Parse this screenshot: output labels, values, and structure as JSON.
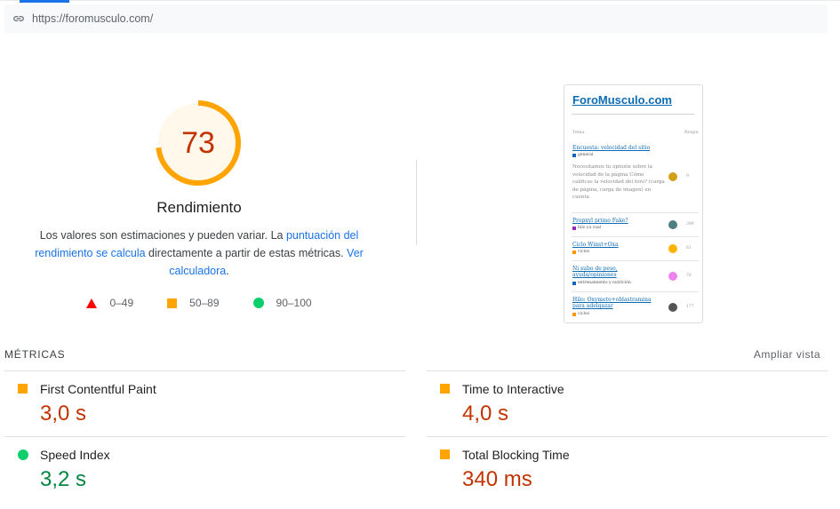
{
  "url": "https://foromusculo.com/",
  "score": {
    "value": "73",
    "fraction": 0.73,
    "title": "Rendimiento",
    "desc_1": "Los valores son estimaciones y pueden variar. La ",
    "desc_link_1": "puntuación del rendimiento se calcula",
    "desc_2": " directamente a partir de estas métricas. ",
    "desc_link_2": "Ver calculadora",
    "desc_3": "."
  },
  "legend": [
    {
      "label": "0–49",
      "color": "#ff0000"
    },
    {
      "label": "50–89",
      "color": "#ffa400"
    },
    {
      "label": "90–100",
      "color": "#0cce6b"
    }
  ],
  "thumbnail": {
    "site_title": "ForoMusculo.com",
    "header_left": "Tema",
    "header_right": "Respu",
    "topics": [
      {
        "title": "Encuesta: velocidad del sitio",
        "tag": "general",
        "tag_color": "#1565c0"
      },
      {
        "title": "Propxyl primo Fake?",
        "tag": "hilo ya cual",
        "tag_color": "#9c27b0",
        "count": "390"
      },
      {
        "title": "Ciclo Winst+Oxa",
        "tag": "ciclos",
        "tag_color": "#ff9800",
        "count": "61"
      },
      {
        "title": "Ni subo de peso, ayuda/opiniones",
        "tag": "entrenamiento y nutrición",
        "tag_color": "#1565c0",
        "count": "76"
      },
      {
        "title": "Hilo: Oxymeto+oblastramina para adelgazar",
        "tag": "ciclos",
        "tag_color": "#ff9800",
        "count": "177"
      }
    ],
    "paragraph": "Necesitamos tu opinión sobre la velocidad de la página Cómo calificas la velocidad del foro? (carga de página, carga de imagen) en cuenta",
    "para_count": "9"
  },
  "metrics_header": "MÉTRICAS",
  "expand_label": "Ampliar vista",
  "metrics": [
    {
      "name": "First Contentful Paint",
      "value": "3,0 s",
      "rating": "average"
    },
    {
      "name": "Time to Interactive",
      "value": "4,0 s",
      "rating": "average"
    },
    {
      "name": "Speed Index",
      "value": "3,2 s",
      "rating": "pass"
    },
    {
      "name": "Total Blocking Time",
      "value": "340 ms",
      "rating": "average"
    }
  ],
  "colors": {
    "average": "#ffa400",
    "pass": "#0cce6b",
    "fail": "#ff0000",
    "score_text": "#c33300",
    "link": "#1a73e8"
  }
}
